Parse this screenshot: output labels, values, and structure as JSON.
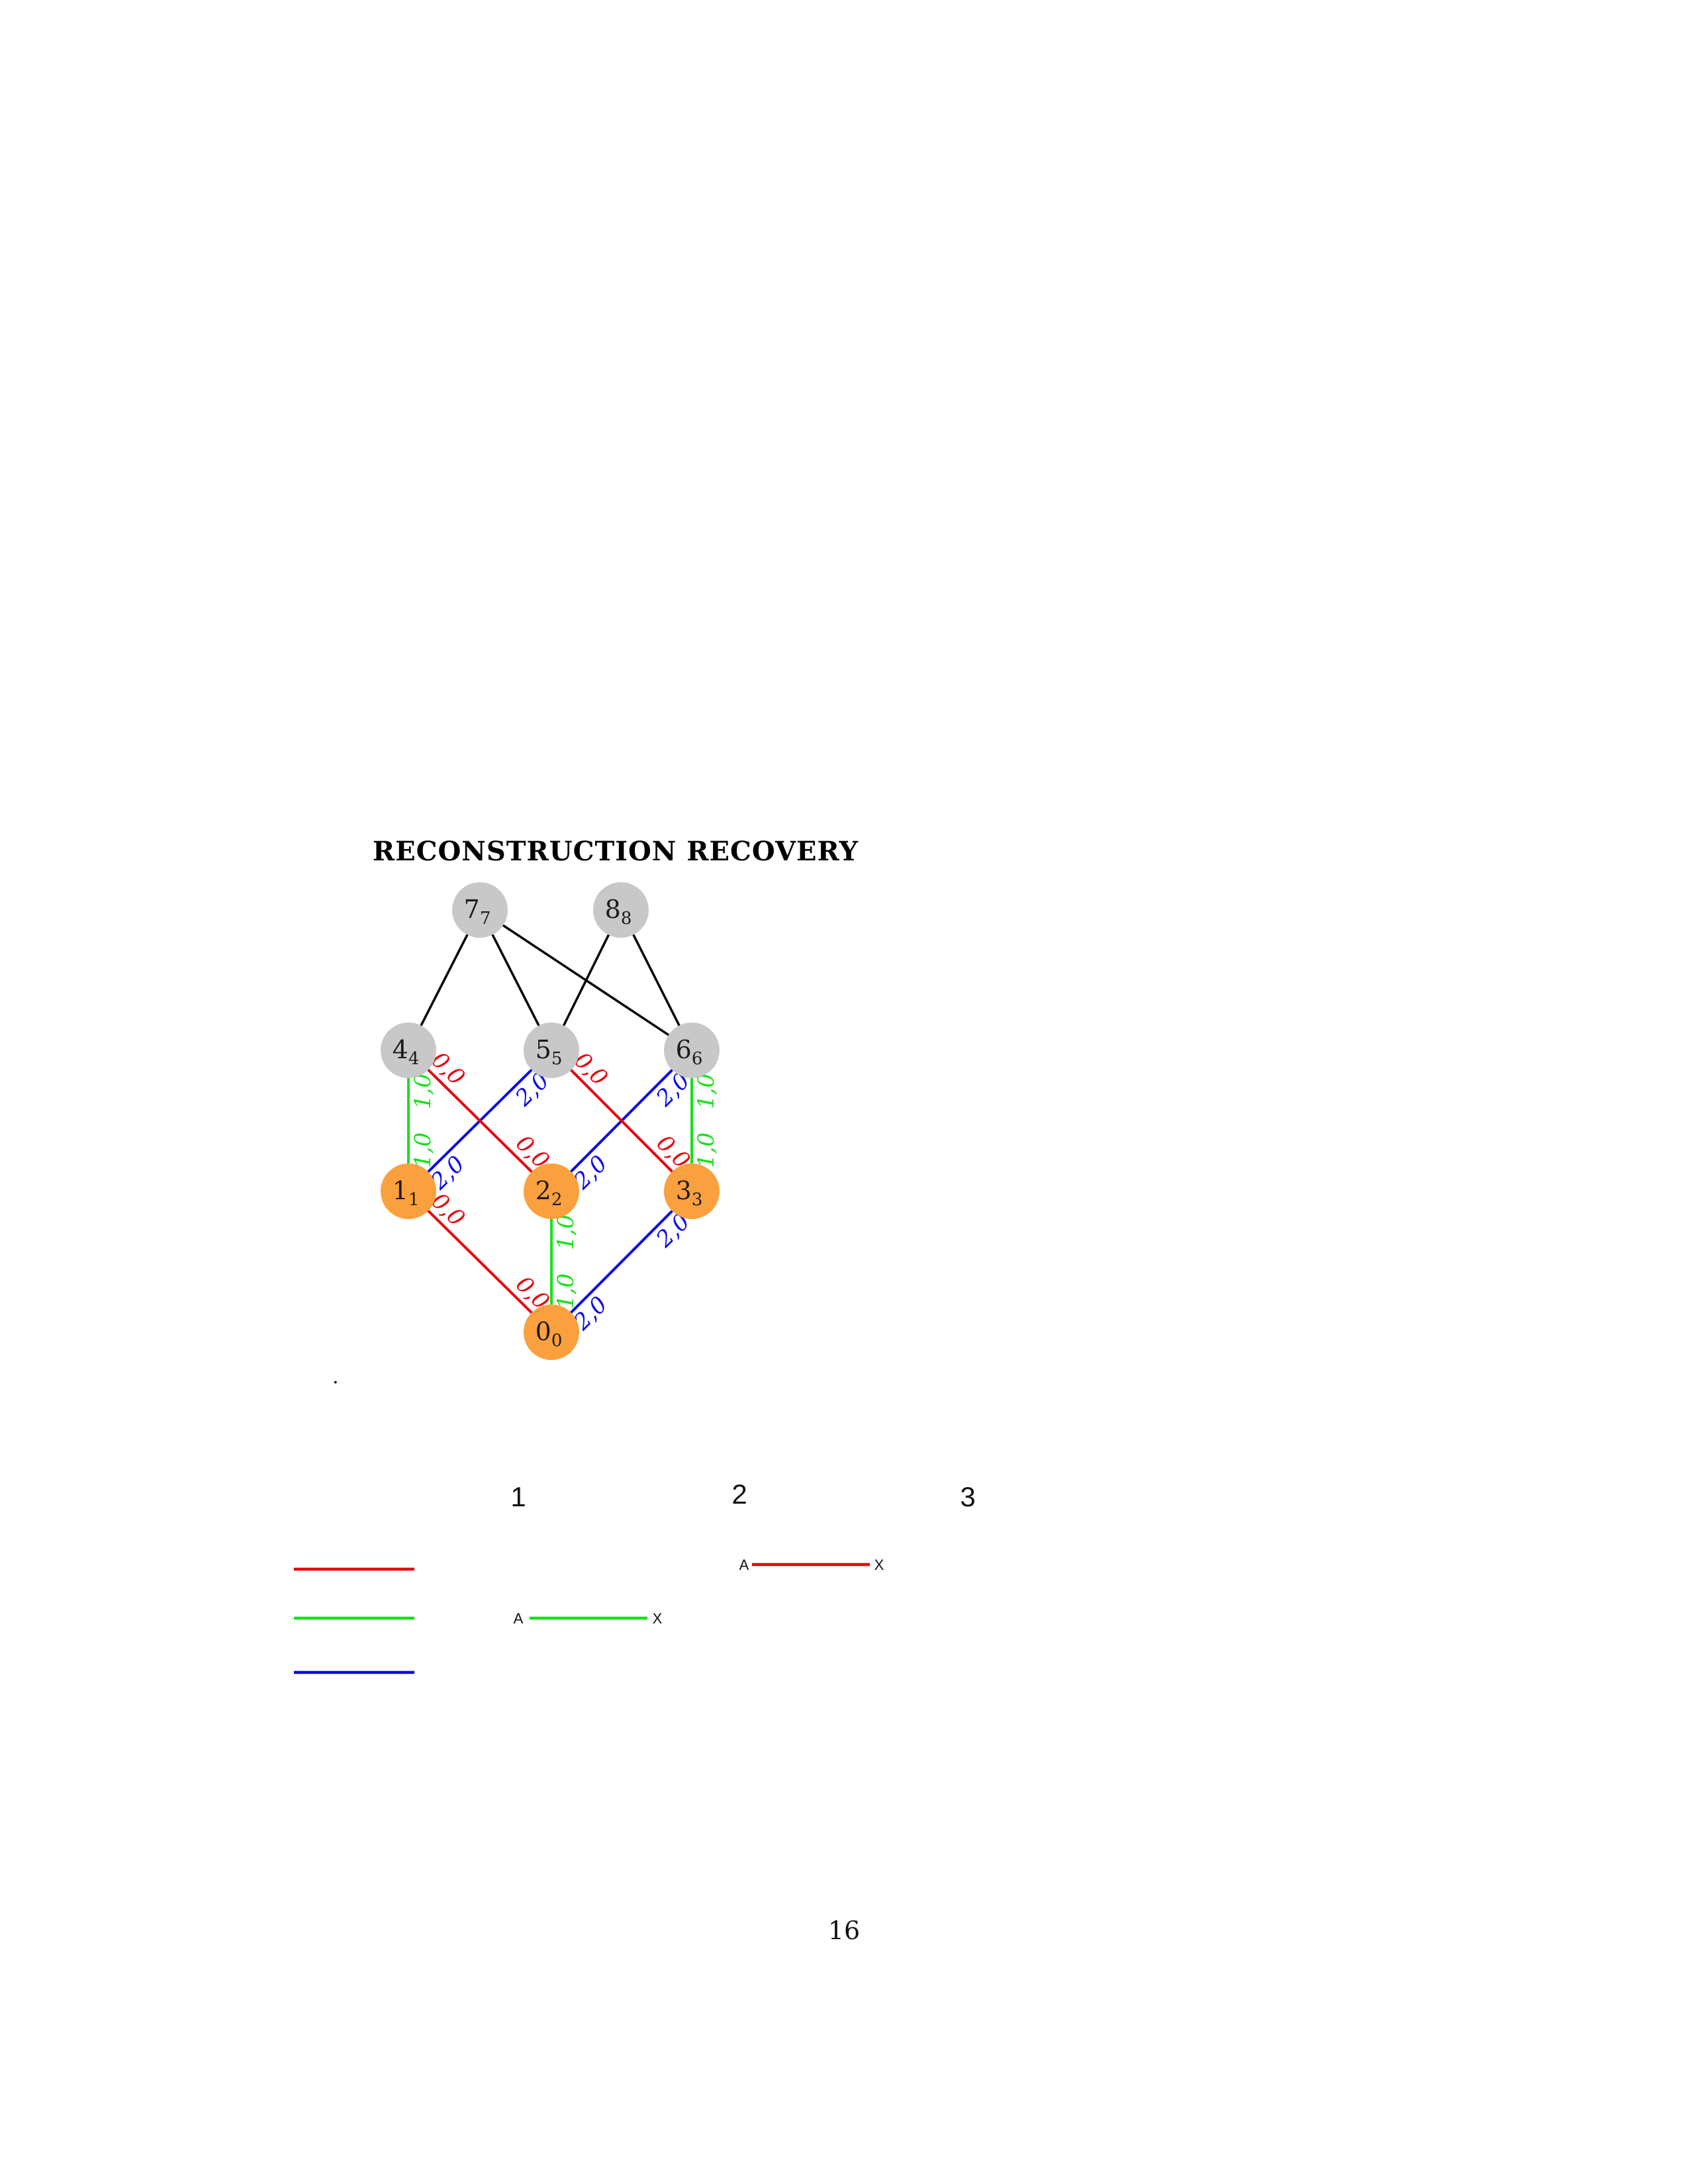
{
  "title": "RECONSTRUCTION RECOVERY",
  "colors": {
    "orange": "#FBA03E",
    "gray": "#C8C8C8",
    "red": "#E8000B",
    "green": "#19E019",
    "blue": "#0A0AE6",
    "black": "#000000"
  },
  "nodes": [
    {
      "id": "0",
      "main": "0",
      "sub": "0",
      "fill": "orange"
    },
    {
      "id": "1",
      "main": "1",
      "sub": "1",
      "fill": "orange"
    },
    {
      "id": "2",
      "main": "2",
      "sub": "2",
      "fill": "orange"
    },
    {
      "id": "3",
      "main": "3",
      "sub": "3",
      "fill": "orange"
    },
    {
      "id": "4",
      "main": "4",
      "sub": "4",
      "fill": "gray"
    },
    {
      "id": "5",
      "main": "5",
      "sub": "5",
      "fill": "gray"
    },
    {
      "id": "6",
      "main": "6",
      "sub": "6",
      "fill": "gray"
    },
    {
      "id": "7",
      "main": "7",
      "sub": "7",
      "fill": "gray"
    },
    {
      "id": "8",
      "main": "8",
      "sub": "8",
      "fill": "gray"
    }
  ],
  "edges": [
    {
      "from": "0",
      "to": "1",
      "color": "red",
      "labels": [
        "0,0",
        "0,0"
      ]
    },
    {
      "from": "0",
      "to": "2",
      "color": "green",
      "labels": [
        "1,0",
        "1,0"
      ]
    },
    {
      "from": "0",
      "to": "3",
      "color": "blue",
      "labels": [
        "2,0",
        "2,0"
      ]
    },
    {
      "from": "1",
      "to": "4",
      "color": "green",
      "labels": [
        "1,0",
        "1,0"
      ]
    },
    {
      "from": "1",
      "to": "5",
      "color": "blue",
      "labels": [
        "2,0",
        "2,0"
      ]
    },
    {
      "from": "2",
      "to": "4",
      "color": "red",
      "labels": [
        "0,0",
        "0,0"
      ]
    },
    {
      "from": "2",
      "to": "6",
      "color": "blue",
      "labels": [
        "2,0",
        "2,0"
      ]
    },
    {
      "from": "3",
      "to": "5",
      "color": "red",
      "labels": [
        "0,0",
        "0,0"
      ]
    },
    {
      "from": "3",
      "to": "6",
      "color": "green",
      "labels": [
        "1,0",
        "1,0"
      ]
    },
    {
      "from": "4",
      "to": "7",
      "color": "black",
      "labels": []
    },
    {
      "from": "5",
      "to": "7",
      "color": "black",
      "labels": []
    },
    {
      "from": "6",
      "to": "7",
      "color": "black",
      "labels": []
    },
    {
      "from": "5",
      "to": "8",
      "color": "black",
      "labels": []
    },
    {
      "from": "6",
      "to": "8",
      "color": "black",
      "labels": []
    }
  ],
  "stray_mark": ".",
  "legend": {
    "columns": [
      "1",
      "2",
      "3"
    ],
    "line_colors": [
      "red",
      "green",
      "blue"
    ],
    "segments": [
      {
        "color": "green",
        "start": "A",
        "end": "X"
      },
      {
        "color": "red",
        "start": "A",
        "end": "X"
      }
    ]
  },
  "page_number": "16"
}
